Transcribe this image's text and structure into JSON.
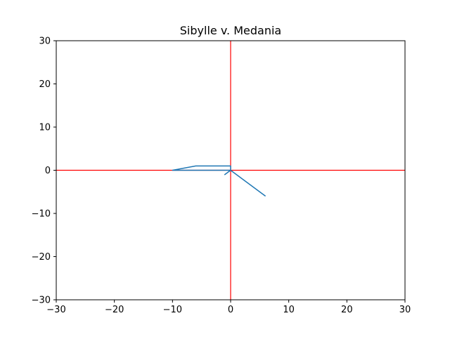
{
  "chart_data": {
    "type": "line",
    "title": "Sibylle v. Medania",
    "xlabel": "",
    "ylabel": "",
    "xlim": [
      -30,
      30
    ],
    "ylim": [
      -30,
      30
    ],
    "xticks": [
      -30,
      -20,
      -10,
      0,
      10,
      20,
      30
    ],
    "yticks": [
      -30,
      -20,
      -10,
      0,
      10,
      20,
      30
    ],
    "xtick_labels": [
      "−30",
      "−20",
      "−10",
      "0",
      "10",
      "20",
      "30"
    ],
    "ytick_labels": [
      "−30",
      "−20",
      "−10",
      "0",
      "10",
      "20",
      "30"
    ],
    "grid": false,
    "reference_lines": [
      {
        "orientation": "horizontal",
        "value": 0,
        "color": "#ff0000"
      },
      {
        "orientation": "vertical",
        "value": 0,
        "color": "#ff0000"
      }
    ],
    "series": [
      {
        "color": "#1f77b4",
        "points": [
          [
            -10,
            0
          ],
          [
            -6,
            1
          ],
          [
            0,
            1
          ],
          [
            0,
            0
          ],
          [
            -10,
            0
          ],
          [
            0,
            0
          ],
          [
            -1,
            -1
          ],
          [
            0,
            0
          ],
          [
            6,
            -6
          ]
        ]
      }
    ]
  }
}
